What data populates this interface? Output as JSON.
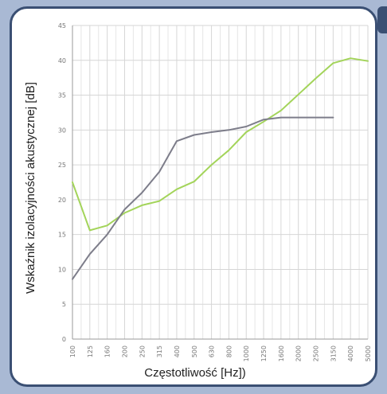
{
  "chart_data": {
    "type": "line",
    "xlabel": "Częstotliwość [Hz])",
    "ylabel": "Wskaźnik izolacyjności akustycznej [dB]",
    "categories": [
      "100",
      "125",
      "160",
      "200",
      "250",
      "315",
      "400",
      "500",
      "630",
      "800",
      "1000",
      "1250",
      "1600",
      "2000",
      "2500",
      "3150",
      "4000",
      "5000"
    ],
    "yticks": [
      0,
      5,
      10,
      15,
      20,
      25,
      30,
      35,
      40,
      45
    ],
    "ylim": [
      0,
      45
    ],
    "grid": true,
    "series": [
      {
        "color": "#a3d45a",
        "values": [
          22.5,
          15.6,
          16.3,
          18.1,
          19.2,
          19.8,
          21.5,
          22.6,
          25.0,
          27.1,
          29.7,
          31.2,
          32.8,
          35.1,
          37.4,
          39.6,
          40.3,
          39.9
        ]
      },
      {
        "color": "#7d7d8a",
        "values": [
          8.6,
          12.2,
          15.0,
          18.6,
          21.0,
          24.0,
          28.4,
          29.3,
          29.7,
          30.0,
          30.5,
          31.5,
          31.8,
          31.8,
          31.8,
          31.8,
          null,
          null
        ]
      }
    ]
  }
}
